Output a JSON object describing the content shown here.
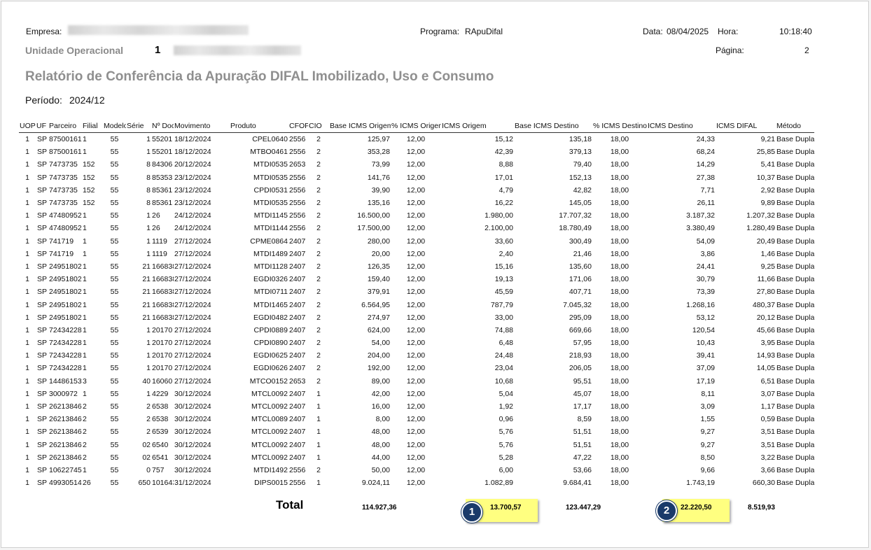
{
  "header": {
    "empresa_label": "Empresa:",
    "programa_label": "Programa:",
    "programa_value": "RApuDifal",
    "data_label": "Data:",
    "data_value": "08/04/2025",
    "hora_label": "Hora:",
    "hora_value": "10:18:40",
    "unidade_label": "Unidade Operacional",
    "unidade_value": "1",
    "pagina_label": "Página:",
    "pagina_value": "2",
    "title": "Relatório de Conferência da Apuração DIFAL Imobilizado, Uso e Consumo",
    "periodo_label": "Período:",
    "periodo_value": "2024/12"
  },
  "table": {
    "columns": [
      "UOP",
      "UF",
      "Parceiro",
      "Filial",
      "Modelo",
      "Série",
      "Nº Documento",
      "Movimento",
      "Produto",
      "CFOP",
      "CIO",
      "Base ICMS Origem",
      "% ICMS Origem",
      "ICMS Origem",
      "Base ICMS Destino",
      "% ICMS Destino",
      "ICMS Destino",
      "ICMS DIFAL",
      "Método"
    ],
    "rows": [
      [
        "1",
        "SP",
        "87500161",
        "1",
        "55",
        "1",
        "55201",
        "18/12/2024",
        "CPEL0640",
        "2556",
        "2",
        "125,97",
        "12,00",
        "15,12",
        "135,18",
        "18,00",
        "24,33",
        "9,21",
        "Base Dupla"
      ],
      [
        "1",
        "SP",
        "87500161",
        "1",
        "55",
        "1",
        "55201",
        "18/12/2024",
        "MTBO0461",
        "2556",
        "2",
        "353,28",
        "12,00",
        "42,39",
        "379,13",
        "18,00",
        "68,24",
        "25,85",
        "Base Dupla"
      ],
      [
        "1",
        "SP",
        "7473735",
        "152",
        "55",
        "8",
        "84306",
        "20/12/2024",
        "MTDI0535",
        "2653",
        "2",
        "73,99",
        "12,00",
        "8,88",
        "79,40",
        "18,00",
        "14,29",
        "5,41",
        "Base Dupla"
      ],
      [
        "1",
        "SP",
        "7473735",
        "152",
        "55",
        "8",
        "85353",
        "23/12/2024",
        "MTDI0535",
        "2556",
        "2",
        "141,76",
        "12,00",
        "17,01",
        "152,13",
        "18,00",
        "27,38",
        "10,37",
        "Base Dupla"
      ],
      [
        "1",
        "SP",
        "7473735",
        "152",
        "55",
        "8",
        "85361",
        "23/12/2024",
        "CPDI0531",
        "2556",
        "2",
        "39,90",
        "12,00",
        "4,79",
        "42,82",
        "18,00",
        "7,71",
        "2,92",
        "Base Dupla"
      ],
      [
        "1",
        "SP",
        "7473735",
        "152",
        "55",
        "8",
        "85361",
        "23/12/2024",
        "MTDI0535",
        "2556",
        "2",
        "135,16",
        "12,00",
        "16,22",
        "145,05",
        "18,00",
        "26,11",
        "9,89",
        "Base Dupla"
      ],
      [
        "1",
        "SP",
        "47480952",
        "1",
        "55",
        "1",
        "26",
        "24/12/2024",
        "MTDI1145",
        "2556",
        "2",
        "16.500,00",
        "12,00",
        "1.980,00",
        "17.707,32",
        "18,00",
        "3.187,32",
        "1.207,32",
        "Base Dupla"
      ],
      [
        "1",
        "SP",
        "47480952",
        "1",
        "55",
        "1",
        "26",
        "24/12/2024",
        "MTDI1144",
        "2556",
        "2",
        "17.500,00",
        "12,00",
        "2.100,00",
        "18.780,49",
        "18,00",
        "3.380,49",
        "1.280,49",
        "Base Dupla"
      ],
      [
        "1",
        "SP",
        "741719",
        "1",
        "55",
        "1",
        "1119",
        "27/12/2024",
        "CPME0864",
        "2407",
        "2",
        "280,00",
        "12,00",
        "33,60",
        "300,49",
        "18,00",
        "54,09",
        "20,49",
        "Base Dupla"
      ],
      [
        "1",
        "SP",
        "741719",
        "1",
        "55",
        "1",
        "1119",
        "27/12/2024",
        "MTDI1489",
        "2407",
        "2",
        "20,00",
        "12,00",
        "2,40",
        "21,46",
        "18,00",
        "3,86",
        "1,46",
        "Base Dupla"
      ],
      [
        "1",
        "SP",
        "24951802",
        "1",
        "55",
        "21",
        "166838",
        "27/12/2024",
        "MTDI1128",
        "2407",
        "2",
        "126,35",
        "12,00",
        "15,16",
        "135,60",
        "18,00",
        "24,41",
        "9,25",
        "Base Dupla"
      ],
      [
        "1",
        "SP",
        "24951802",
        "1",
        "55",
        "21",
        "166838",
        "27/12/2024",
        "EGDI0326",
        "2407",
        "2",
        "159,40",
        "12,00",
        "19,13",
        "171,06",
        "18,00",
        "30,79",
        "11,66",
        "Base Dupla"
      ],
      [
        "1",
        "SP",
        "24951802",
        "1",
        "55",
        "21",
        "166838",
        "27/12/2024",
        "MTDI0711",
        "2407",
        "2",
        "379,91",
        "12,00",
        "45,59",
        "407,71",
        "18,00",
        "73,39",
        "27,80",
        "Base Dupla"
      ],
      [
        "1",
        "SP",
        "24951802",
        "1",
        "55",
        "21",
        "166838",
        "27/12/2024",
        "MTDI1465",
        "2407",
        "2",
        "6.564,95",
        "12,00",
        "787,79",
        "7.045,32",
        "18,00",
        "1.268,16",
        "480,37",
        "Base Dupla"
      ],
      [
        "1",
        "SP",
        "24951802",
        "1",
        "55",
        "21",
        "166838",
        "27/12/2024",
        "EGDI0482",
        "2407",
        "2",
        "274,97",
        "12,00",
        "33,00",
        "295,09",
        "18,00",
        "53,12",
        "20,12",
        "Base Dupla"
      ],
      [
        "1",
        "SP",
        "72434228",
        "1",
        "55",
        "1",
        "20170",
        "27/12/2024",
        "CPDI0889",
        "2407",
        "2",
        "624,00",
        "12,00",
        "74,88",
        "669,66",
        "18,00",
        "120,54",
        "45,66",
        "Base Dupla"
      ],
      [
        "1",
        "SP",
        "72434228",
        "1",
        "55",
        "1",
        "20170",
        "27/12/2024",
        "CPDI0890",
        "2407",
        "2",
        "54,00",
        "12,00",
        "6,48",
        "57,95",
        "18,00",
        "10,43",
        "3,95",
        "Base Dupla"
      ],
      [
        "1",
        "SP",
        "72434228",
        "1",
        "55",
        "1",
        "20170",
        "27/12/2024",
        "EGDI0625",
        "2407",
        "2",
        "204,00",
        "12,00",
        "24,48",
        "218,93",
        "18,00",
        "39,41",
        "14,93",
        "Base Dupla"
      ],
      [
        "1",
        "SP",
        "72434228",
        "1",
        "55",
        "1",
        "20170",
        "27/12/2024",
        "EGDI0626",
        "2407",
        "2",
        "192,00",
        "12,00",
        "23,04",
        "206,05",
        "18,00",
        "37,09",
        "14,05",
        "Base Dupla"
      ],
      [
        "1",
        "SP",
        "14486153",
        "3",
        "55",
        "40",
        "16060",
        "27/12/2024",
        "MTCO0152",
        "2653",
        "2",
        "89,00",
        "12,00",
        "10,68",
        "95,51",
        "18,00",
        "17,19",
        "6,51",
        "Base Dupla"
      ],
      [
        "1",
        "SP",
        "3000972",
        "1",
        "55",
        "1",
        "4229",
        "30/12/2024",
        "MTCL0092",
        "2407",
        "1",
        "42,00",
        "12,00",
        "5,04",
        "45,07",
        "18,00",
        "8,11",
        "3,07",
        "Base Dupla"
      ],
      [
        "1",
        "SP",
        "26213846",
        "2",
        "55",
        "2",
        "6538",
        "30/12/2024",
        "MTCL0092",
        "2407",
        "1",
        "16,00",
        "12,00",
        "1,92",
        "17,17",
        "18,00",
        "3,09",
        "1,17",
        "Base Dupla"
      ],
      [
        "1",
        "SP",
        "26213846",
        "2",
        "55",
        "2",
        "6538",
        "30/12/2024",
        "MTCL0089",
        "2407",
        "1",
        "8,00",
        "12,00",
        "0,96",
        "8,59",
        "18,00",
        "1,55",
        "0,59",
        "Base Dupla"
      ],
      [
        "1",
        "SP",
        "26213846",
        "2",
        "55",
        "2",
        "6539",
        "30/12/2024",
        "MTCL0092",
        "2407",
        "1",
        "48,00",
        "12,00",
        "5,76",
        "51,51",
        "18,00",
        "9,27",
        "3,51",
        "Base Dupla"
      ],
      [
        "1",
        "SP",
        "26213846",
        "2",
        "55",
        "02",
        "6540",
        "30/12/2024",
        "MTCL0092",
        "2407",
        "1",
        "48,00",
        "12,00",
        "5,76",
        "51,51",
        "18,00",
        "9,27",
        "3,51",
        "Base Dupla"
      ],
      [
        "1",
        "SP",
        "26213846",
        "2",
        "55",
        "02",
        "6541",
        "30/12/2024",
        "MTCL0092",
        "2407",
        "1",
        "44,00",
        "12,00",
        "5,28",
        "47,22",
        "18,00",
        "8,50",
        "3,22",
        "Base Dupla"
      ],
      [
        "1",
        "SP",
        "10622745",
        "1",
        "55",
        "0",
        "757",
        "30/12/2024",
        "MTDI1492",
        "2556",
        "2",
        "50,00",
        "12,00",
        "6,00",
        "53,66",
        "18,00",
        "9,66",
        "3,66",
        "Base Dupla"
      ],
      [
        "1",
        "SP",
        "49930514",
        "26",
        "55",
        "650",
        "101643",
        "31/12/2024",
        "DIPS0015",
        "2556",
        "1",
        "9.024,11",
        "12,00",
        "1.082,89",
        "9.684,41",
        "18,00",
        "1.743,19",
        "660,30",
        "Base Dupla"
      ]
    ]
  },
  "totals": {
    "label": "Total",
    "base_icms_origem": "114.927,36",
    "icms_origem": "13.700,57",
    "base_icms_destino": "123.447,29",
    "icms_destino": "22.220,50",
    "icms_difal": "8.519,93"
  },
  "callouts": {
    "badge1": "1",
    "badge2": "2",
    "highlight_color": "#ffff80",
    "badge_color": "#1a3a6a"
  }
}
